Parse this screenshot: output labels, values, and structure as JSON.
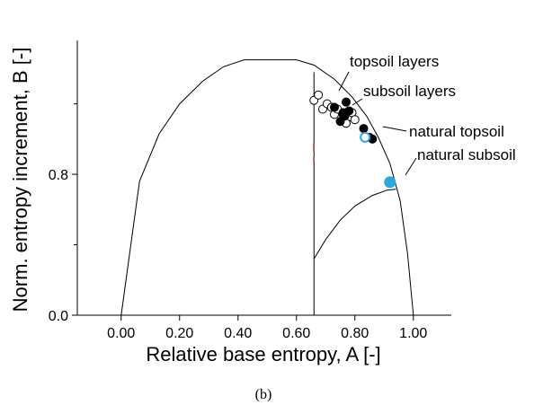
{
  "chart_data": {
    "type": "scatter",
    "xlabel": "Relative base entropy, A [-]",
    "ylabel": "Norm. entropy increment,   B [-]",
    "caption": "(b)",
    "xlim": [
      -0.15,
      1.13
    ],
    "ylim": [
      0.0,
      1.56
    ],
    "x_ticks": [
      0.0,
      0.2,
      0.4,
      0.6,
      0.8,
      1.0
    ],
    "x_tick_labels": [
      "0.00",
      "0.20",
      "0.40",
      "0.60",
      "0.80",
      "1.00"
    ],
    "y_ticks": [
      0.0,
      0.8
    ],
    "y_tick_labels": [
      "0.0",
      "0.8"
    ],
    "y_minor_ticks": [
      0.4,
      1.2
    ],
    "grid": false,
    "colors": {
      "ink": "#000000",
      "accent": "#2aa8dc",
      "dash": "#d9534f"
    },
    "outer_curve": [
      [
        0.0,
        0.0
      ],
      [
        0.063,
        0.76
      ],
      [
        0.13,
        1.03
      ],
      [
        0.2,
        1.2
      ],
      [
        0.28,
        1.33
      ],
      [
        0.35,
        1.41
      ],
      [
        0.42,
        1.45
      ],
      [
        0.52,
        1.45
      ],
      [
        0.6,
        1.45
      ],
      [
        0.66,
        1.42
      ],
      [
        0.73,
        1.34
      ],
      [
        0.79,
        1.24
      ],
      [
        0.84,
        1.13
      ],
      [
        0.88,
        1.01
      ],
      [
        0.92,
        0.86
      ],
      [
        0.955,
        0.65
      ],
      [
        0.98,
        0.35
      ],
      [
        1.0,
        0.0
      ]
    ],
    "vertical_line": {
      "x": 0.66,
      "y_from": 0.0,
      "y_to": 1.38
    },
    "inner_curve": [
      [
        0.66,
        0.32
      ],
      [
        0.7,
        0.43
      ],
      [
        0.75,
        0.54
      ],
      [
        0.8,
        0.62
      ],
      [
        0.86,
        0.68
      ],
      [
        0.91,
        0.71
      ],
      [
        0.94,
        0.715
      ]
    ],
    "series": [
      {
        "name": "topsoil layers",
        "marker": "open-circle",
        "points": [
          [
            0.66,
            1.22
          ],
          [
            0.675,
            1.25
          ],
          [
            0.69,
            1.17
          ],
          [
            0.705,
            1.2
          ],
          [
            0.72,
            1.18
          ],
          [
            0.73,
            1.14
          ],
          [
            0.74,
            1.17
          ],
          [
            0.76,
            1.14
          ],
          [
            0.775,
            1.12
          ],
          [
            0.79,
            1.15
          ],
          [
            0.8,
            1.11
          ],
          [
            0.77,
            1.09
          ]
        ]
      },
      {
        "name": "subsoil layers",
        "marker": "filled-circle",
        "points": [
          [
            0.73,
            1.18
          ],
          [
            0.75,
            1.1
          ],
          [
            0.76,
            1.15
          ],
          [
            0.77,
            1.21
          ],
          [
            0.78,
            1.16
          ],
          [
            0.765,
            1.13
          ],
          [
            0.83,
            1.06
          ],
          [
            0.85,
            1.01
          ],
          [
            0.86,
            1.0
          ]
        ]
      },
      {
        "name": "natural topsoil",
        "marker": "open-circle-blue",
        "points": [
          [
            0.835,
            1.01
          ]
        ]
      },
      {
        "name": "natural subsoil",
        "marker": "filled-circle-blue",
        "points": [
          [
            0.92,
            0.755
          ]
        ]
      }
    ],
    "annotations": [
      {
        "text": "topsoil layers",
        "series": 0
      },
      {
        "text": "subsoil layers",
        "series": 1
      },
      {
        "text": "natural topsoil",
        "series": 2
      },
      {
        "text": "natural subsoil",
        "series": 3
      }
    ]
  }
}
